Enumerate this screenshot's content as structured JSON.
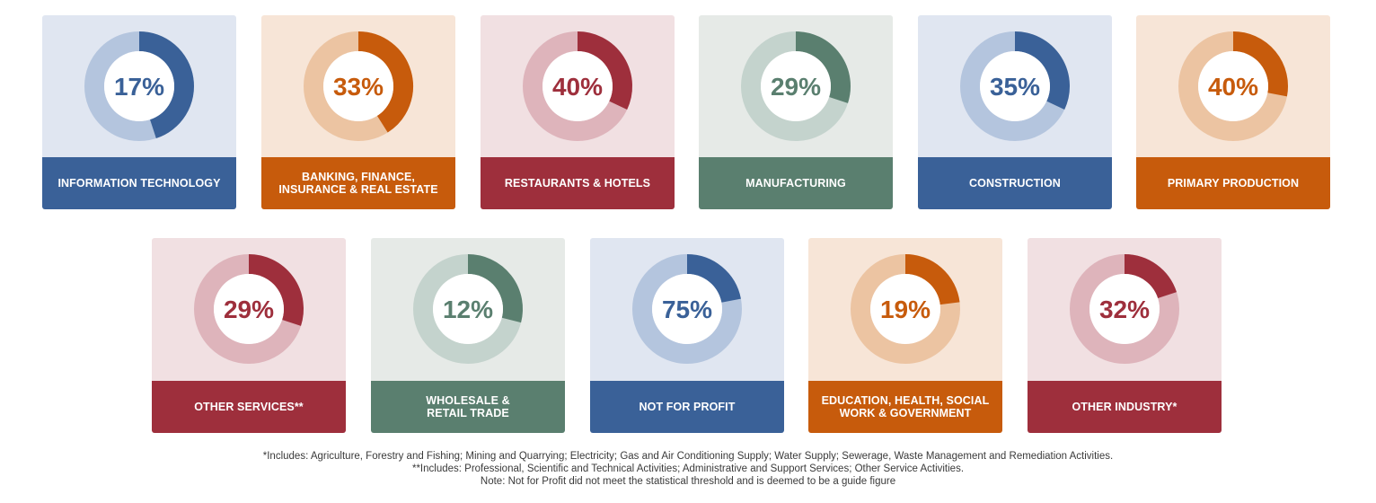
{
  "colors": {
    "blue": {
      "bg": "#e0e6f1",
      "ring": "#b4c5de",
      "main": "#3a6198"
    },
    "orange": {
      "bg": "#f7e5d7",
      "ring": "#ecc4a2",
      "main": "#c75b0c"
    },
    "red": {
      "bg": "#f1e0e2",
      "ring": "#deb4bb",
      "main": "#9e2f3c"
    },
    "green": {
      "bg": "#e6eae7",
      "ring": "#c4d3cd",
      "main": "#5a7f6f"
    }
  },
  "chart_data": {
    "type": "pie",
    "subtype": "donut",
    "categories": [
      "INFORMATION TECHNOLOGY",
      "BANKING, FINANCE,\nINSURANCE & REAL ESTATE",
      "RESTAURANTS & HOTELS",
      "MANUFACTURING",
      "CONSTRUCTION",
      "PRIMARY PRODUCTION",
      "OTHER SERVICES**",
      "WHOLESALE &\nRETAIL TRADE",
      "NOT FOR PROFIT",
      "EDUCATION, HEALTH, SOCIAL\nWORK & GOVERNMENT",
      "OTHER INDUSTRY*"
    ],
    "values": [
      17,
      33,
      40,
      29,
      35,
      40,
      29,
      12,
      75,
      19,
      32
    ],
    "value_labels": [
      "17%",
      "33%",
      "40%",
      "29%",
      "35%",
      "40%",
      "29%",
      "12%",
      "75%",
      "19%",
      "32%"
    ],
    "arc_fractions": [
      0.45,
      0.41,
      0.32,
      0.3,
      0.32,
      0.28,
      0.3,
      0.29,
      0.22,
      0.23,
      0.2
    ],
    "themes": [
      "blue",
      "orange",
      "red",
      "green",
      "blue",
      "orange",
      "red",
      "green",
      "blue",
      "orange",
      "red"
    ]
  },
  "footnotes": [
    "*Includes: Agriculture, Forestry and Fishing; Mining and Quarrying; Electricity; Gas and Air Conditioning Supply; Water Supply; Sewerage, Waste Management and Remediation Activities.",
    "**Includes: Professional, Scientific and Technical Activities; Administrative and Support Services; Other Service Activities.",
    "Note: Not for Profit did not meet the statistical threshold and is deemed to be a guide figure"
  ]
}
